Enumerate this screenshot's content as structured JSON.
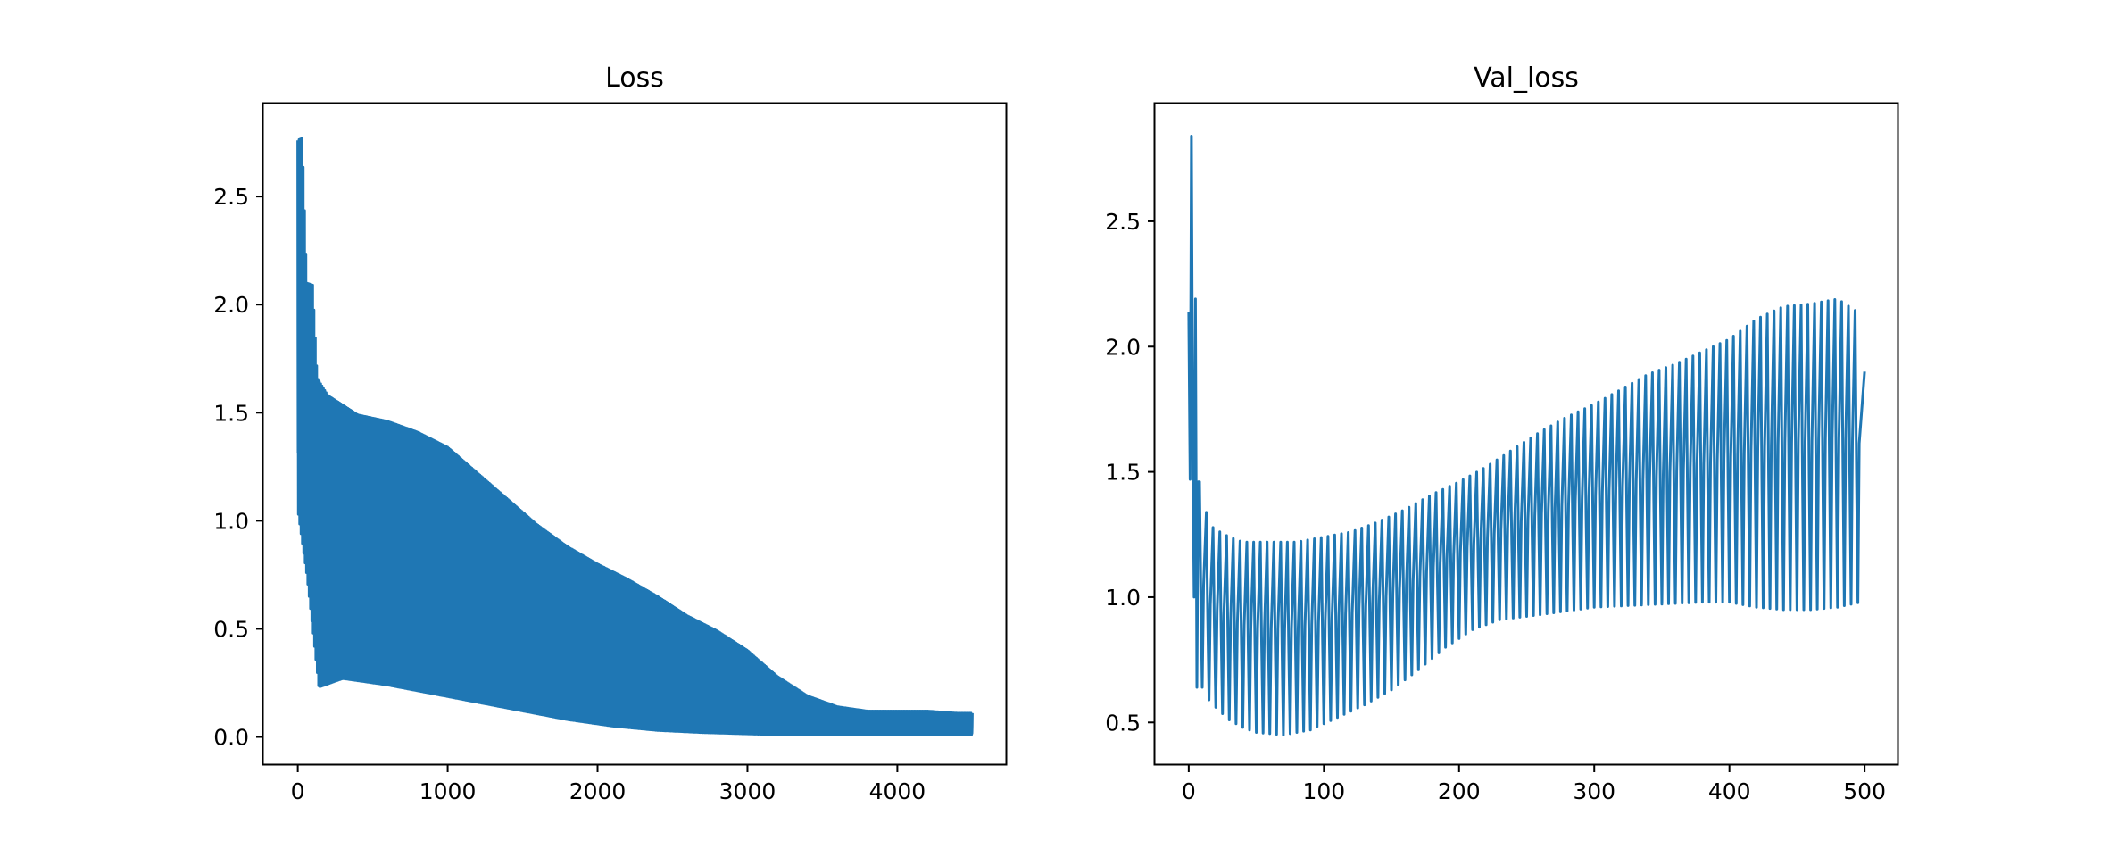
{
  "colors": {
    "series": "#1f77b4",
    "axis": "#000000",
    "background": "#ffffff"
  },
  "chart_data": [
    {
      "type": "line",
      "title": "Loss",
      "xlabel": "",
      "ylabel": "",
      "xlim": [
        -230,
        4730
      ],
      "ylim": [
        -0.13,
        2.93
      ],
      "grid": false,
      "xticks": [
        "0",
        "1000",
        "2000",
        "3000",
        "4000"
      ],
      "xtick_values": [
        0,
        1000,
        2000,
        3000,
        4000
      ],
      "yticks": [
        "0.0",
        "0.5",
        "1.0",
        "1.5",
        "2.0",
        "2.5"
      ],
      "ytick_values": [
        0.0,
        0.5,
        1.0,
        1.5,
        2.0,
        2.5
      ],
      "series": [
        {
          "points_per_cycle": 9,
          "peak_envelope": [
            [
              0,
              2.76
            ],
            [
              30,
              2.77
            ],
            [
              60,
              2.1
            ],
            [
              100,
              2.09
            ],
            [
              130,
              1.66
            ],
            [
              200,
              1.58
            ],
            [
              400,
              1.49
            ],
            [
              600,
              1.46
            ],
            [
              800,
              1.41
            ],
            [
              1000,
              1.34
            ],
            [
              1200,
              1.22
            ],
            [
              1400,
              1.1
            ],
            [
              1600,
              0.98
            ],
            [
              1800,
              0.88
            ],
            [
              2000,
              0.8
            ],
            [
              2200,
              0.73
            ],
            [
              2400,
              0.65
            ],
            [
              2600,
              0.56
            ],
            [
              2800,
              0.49
            ],
            [
              3000,
              0.4
            ],
            [
              3200,
              0.28
            ],
            [
              3400,
              0.19
            ],
            [
              3600,
              0.14
            ],
            [
              3800,
              0.12
            ],
            [
              4000,
              0.12
            ],
            [
              4200,
              0.12
            ],
            [
              4400,
              0.11
            ],
            [
              4500,
              0.11
            ]
          ],
          "mid_envelope": [
            [
              0,
              1.6
            ],
            [
              100,
              1.15
            ],
            [
              300,
              1.05
            ],
            [
              600,
              1.0
            ],
            [
              900,
              0.95
            ],
            [
              1200,
              0.78
            ],
            [
              1500,
              0.55
            ],
            [
              1800,
              0.35
            ],
            [
              2100,
              0.18
            ],
            [
              2400,
              0.09
            ],
            [
              2700,
              0.05
            ],
            [
              3000,
              0.03
            ],
            [
              3500,
              0.02
            ],
            [
              4500,
              0.02
            ]
          ],
          "trough_envelope": [
            [
              0,
              1.05
            ],
            [
              60,
              0.75
            ],
            [
              100,
              0.5
            ],
            [
              140,
              0.23
            ],
            [
              300,
              0.27
            ],
            [
              600,
              0.24
            ],
            [
              900,
              0.2
            ],
            [
              1200,
              0.16
            ],
            [
              1500,
              0.12
            ],
            [
              1800,
              0.08
            ],
            [
              2100,
              0.05
            ],
            [
              2400,
              0.03
            ],
            [
              2700,
              0.02
            ],
            [
              3200,
              0.01
            ],
            [
              4500,
              0.01
            ]
          ]
        }
      ]
    },
    {
      "type": "line",
      "title": "Val_loss",
      "xlabel": "",
      "ylabel": "",
      "xlim": [
        -25,
        525
      ],
      "ylim": [
        0.33,
        2.97
      ],
      "grid": false,
      "xticks": [
        "0",
        "100",
        "200",
        "300",
        "400",
        "500"
      ],
      "xtick_values": [
        0,
        100,
        200,
        300,
        400,
        500
      ],
      "yticks": [
        "0.5",
        "1.0",
        "1.5",
        "2.0",
        "2.5"
      ],
      "ytick_values": [
        0.5,
        1.0,
        1.5,
        2.0,
        2.5
      ],
      "series": [
        {
          "first_values": [
            2.14,
            1.47,
            2.84,
            1.6,
            1.0,
            2.19,
            0.64,
            1.46
          ],
          "period": 5,
          "upper_envelope": [
            [
              8,
              1.46
            ],
            [
              15,
              1.29
            ],
            [
              20,
              1.27
            ],
            [
              30,
              1.24
            ],
            [
              40,
              1.22
            ],
            [
              60,
              1.22
            ],
            [
              80,
              1.22
            ],
            [
              100,
              1.24
            ],
            [
              120,
              1.26
            ],
            [
              140,
              1.3
            ],
            [
              160,
              1.35
            ],
            [
              180,
              1.41
            ],
            [
              200,
              1.46
            ],
            [
              220,
              1.52
            ],
            [
              240,
              1.59
            ],
            [
              260,
              1.66
            ],
            [
              280,
              1.72
            ],
            [
              300,
              1.77
            ],
            [
              320,
              1.83
            ],
            [
              340,
              1.89
            ],
            [
              360,
              1.93
            ],
            [
              380,
              1.98
            ],
            [
              400,
              2.03
            ],
            [
              420,
              2.11
            ],
            [
              440,
              2.16
            ],
            [
              460,
              2.17
            ],
            [
              480,
              2.19
            ],
            [
              497,
              2.13
            ]
          ],
          "lower_envelope": [
            [
              10,
              0.64
            ],
            [
              15,
              0.59
            ],
            [
              20,
              0.56
            ],
            [
              30,
              0.51
            ],
            [
              40,
              0.48
            ],
            [
              50,
              0.46
            ],
            [
              70,
              0.45
            ],
            [
              90,
              0.47
            ],
            [
              110,
              0.52
            ],
            [
              130,
              0.57
            ],
            [
              150,
              0.63
            ],
            [
              170,
              0.71
            ],
            [
              190,
              0.8
            ],
            [
              210,
              0.87
            ],
            [
              230,
              0.91
            ],
            [
              260,
              0.93
            ],
            [
              300,
              0.96
            ],
            [
              340,
              0.97
            ],
            [
              380,
              0.98
            ],
            [
              400,
              0.98
            ],
            [
              420,
              0.96
            ],
            [
              440,
              0.95
            ],
            [
              460,
              0.95
            ],
            [
              480,
              0.96
            ],
            [
              497,
              0.98
            ]
          ],
          "last_value": 1.9,
          "last_x": 500
        }
      ]
    }
  ]
}
